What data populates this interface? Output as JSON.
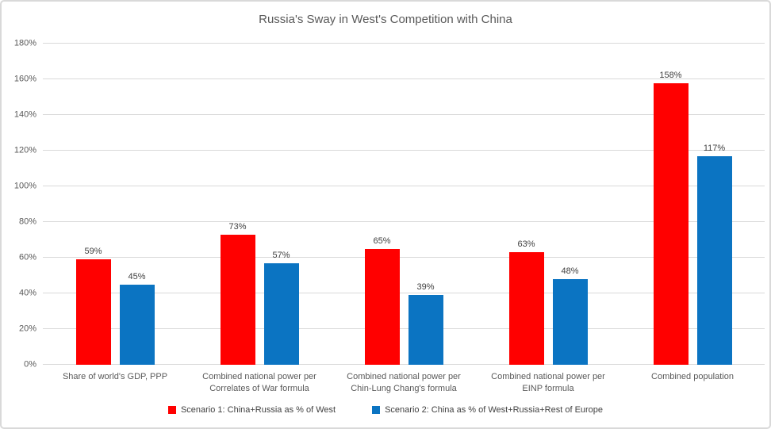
{
  "window": {
    "background": "#FFFFFF",
    "border_color": "#D9D9D9"
  },
  "chart_data": {
    "type": "bar",
    "title": "Russia's Sway in West's Competition with China",
    "categories": [
      "Share of world's GDP, PPP",
      "Combined national power per Correlates of War formula",
      "Combined national power per Chin-Lung Chang's formula",
      "Combined national power per EINP formula",
      "Combined population"
    ],
    "series": [
      {
        "name": "Scenario 1: China+Russia as % of West",
        "color": "#FF0000",
        "values": [
          59,
          73,
          65,
          63,
          158
        ]
      },
      {
        "name": "Scenario 2: China as % of West+Russia+Rest of Europe",
        "color": "#0B74C2",
        "values": [
          45,
          57,
          39,
          48,
          117
        ]
      }
    ],
    "value_suffix": "%",
    "ylim": [
      0,
      180
    ],
    "ytick_step": 20,
    "grid": true,
    "data_labels": true,
    "legend_position": "bottom"
  },
  "style": {
    "grid_color": "#D9D9D9",
    "axis_text_color": "#595959",
    "title_color": "#595959",
    "data_label_color": "#404040",
    "legend_text_color": "#404040",
    "border_color": "#D9D9D9"
  }
}
